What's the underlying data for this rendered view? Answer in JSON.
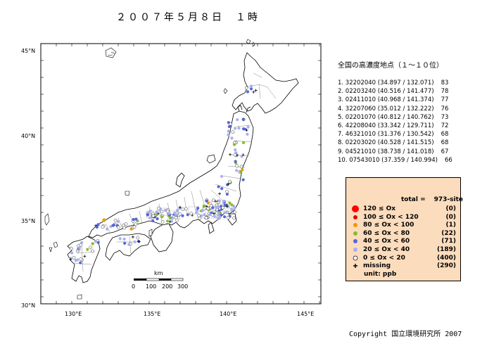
{
  "title": "２００７年５月８日　１時",
  "map": {
    "lat_labels": [
      "45°N",
      "40°N",
      "35°N",
      "30°N"
    ],
    "lon_labels": [
      "130°E",
      "135°E",
      "140°E",
      "145°E"
    ],
    "scalebar": {
      "unit": "km",
      "ticks": [
        "0",
        "100",
        "200",
        "300"
      ]
    }
  },
  "ranking": {
    "title": "全国の高濃度地点（１〜１０位）",
    "items": [
      {
        "text": "1. 32202040 (34.897 / 132.071)",
        "value": "83"
      },
      {
        "text": "2. 02203240 (40.516 / 141.477)",
        "value": "78"
      },
      {
        "text": "3. 02411010 (40.968 / 141.374)",
        "value": "77"
      },
      {
        "text": "4. 32207060 (35.012 / 132.222)",
        "value": "76"
      },
      {
        "text": "5. 02201070 (40.812 / 140.762)",
        "value": "73"
      },
      {
        "text": "6. 42208040 (33.342 / 129.711)",
        "value": "72"
      },
      {
        "text": "7. 46321010 (31.376 / 130.542)",
        "value": "68"
      },
      {
        "text": "8. 02203020 (40.528 / 141.515)",
        "value": "68"
      },
      {
        "text": "9. 04521010 (38.738 / 141.018)",
        "value": "67"
      },
      {
        "text": "10. 07543010 (37.359 / 140.994)",
        "value": "66"
      }
    ]
  },
  "legend": {
    "total_label": "total =",
    "total_value": "973-site",
    "rows": [
      {
        "label": "120 ≤ Ox",
        "count": "(0)",
        "color": "#ff0000",
        "symbol": "big-dot"
      },
      {
        "label": "100 ≤ Ox < 120",
        "count": "(0)",
        "color": "#dd0000",
        "symbol": "dot"
      },
      {
        "label": "80 ≤ Ox < 100",
        "count": "(1)",
        "color": "#ee9900",
        "symbol": "dot"
      },
      {
        "label": "60 ≤ Ox <  80",
        "count": "(22)",
        "color": "#88bb33",
        "symbol": "dot"
      },
      {
        "label": "40 ≤ Ox <  60",
        "count": "(71)",
        "color": "#5566dd",
        "symbol": "dot"
      },
      {
        "label": "20 ≤ Ox <  40",
        "count": "(189)",
        "color": "#aab0ee",
        "symbol": "dot"
      },
      {
        "label": "0 ≤ Ox <  20",
        "count": "(400)",
        "color": "#ffffff",
        "symbol": "open-dot"
      },
      {
        "label": "missing",
        "count": "(290)",
        "color": "#000000",
        "symbol": "plus"
      }
    ],
    "unit": "unit: ppb"
  },
  "copyright": "Copyright  国立環境研究所  2007"
}
